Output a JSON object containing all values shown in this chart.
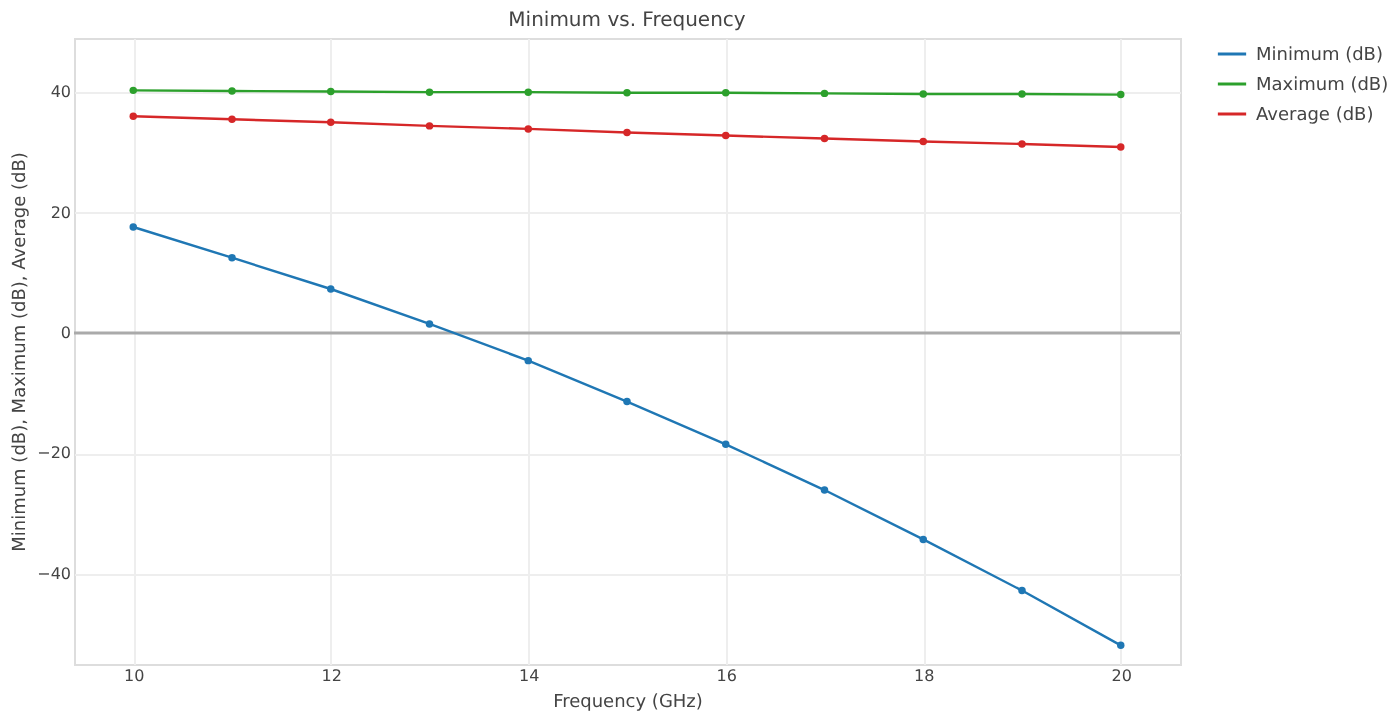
{
  "chart_data": {
    "type": "line",
    "title": "Minimum vs. Frequency",
    "xlabel": "Frequency (GHz)",
    "ylabel": "Minimum (dB), Maximum (dB), Average (dB)",
    "x": [
      10,
      11,
      12,
      13,
      14,
      15,
      16,
      17,
      18,
      19,
      20
    ],
    "series": [
      {
        "name": "Minimum (dB)",
        "color": "#1f77b4",
        "values": [
          17.6,
          12.5,
          7.3,
          1.5,
          -4.6,
          -11.4,
          -18.5,
          -26.1,
          -34.3,
          -42.8,
          -51.9
        ]
      },
      {
        "name": "Maximum (dB)",
        "color": "#2ca02c",
        "values": [
          40.3,
          40.2,
          40.1,
          40.0,
          40.0,
          39.9,
          39.9,
          39.8,
          39.7,
          39.7,
          39.6
        ]
      },
      {
        "name": "Average (dB)",
        "color": "#d62728",
        "values": [
          36.0,
          35.5,
          35.0,
          34.4,
          33.9,
          33.3,
          32.8,
          32.3,
          31.8,
          31.4,
          30.9
        ]
      }
    ],
    "xlim": [
      9.4,
      20.6
    ],
    "xticks": [
      10,
      12,
      14,
      16,
      18,
      20
    ],
    "ylim": [
      -55,
      49
    ],
    "yticks": [
      -40,
      -20,
      0,
      20,
      40
    ],
    "ref_lines": [
      {
        "axis": "y",
        "value": 0,
        "color": "#aaaaaa"
      }
    ],
    "grid": true,
    "legend": "top right",
    "marker": "circle",
    "line_style": "solid"
  }
}
